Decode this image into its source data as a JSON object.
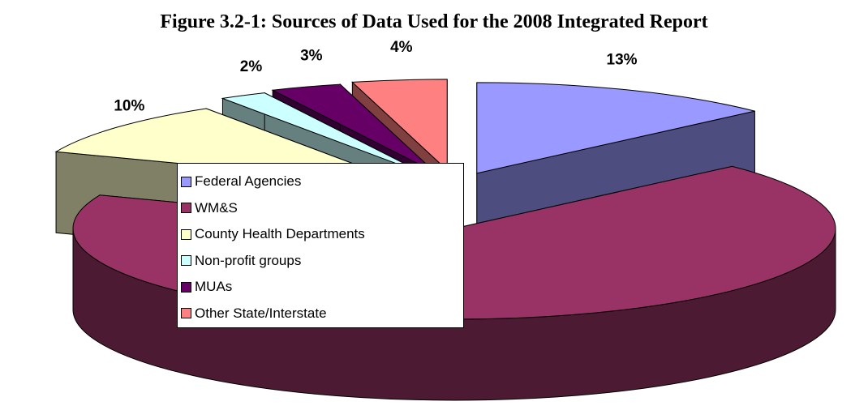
{
  "chart_data": {
    "type": "pie",
    "title": "Figure 3.2-1: Sources of Data Used for the 2008 Integrated Report",
    "categories": [
      "Federal Agencies",
      "WM&S",
      "County Health Departments",
      "Non-profit groups",
      "MUAs",
      "Other State/Interstate"
    ],
    "values": [
      13,
      68,
      10,
      2,
      3,
      4
    ],
    "value_labels": [
      "13%",
      null,
      "10%",
      "2%",
      "3%",
      "4%"
    ],
    "colors": [
      "#9999ff",
      "#993366",
      "#ffffcc",
      "#ccffff",
      "#660066",
      "#ff8080"
    ],
    "legend": "center-left"
  }
}
